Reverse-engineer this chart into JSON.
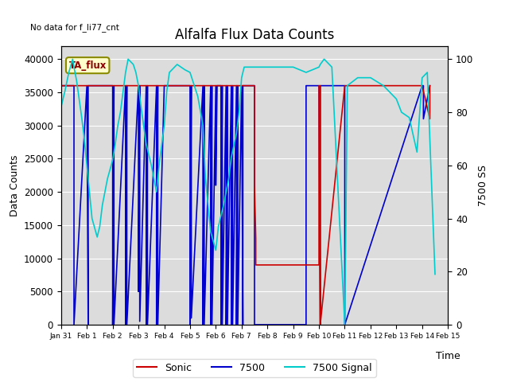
{
  "title": "Alfalfa Flux Data Counts",
  "xlabel": "Time",
  "ylabel_left": "Data Counts",
  "ylabel_right": "7500 SS",
  "top_left_text": "No data for f_li77_cnt",
  "annotation_box": "TA_flux",
  "ylim_left": [
    0,
    42000
  ],
  "ylim_right": [
    0,
    105
  ],
  "background_color": "#dcdcdc",
  "sonic_color": "#cc0000",
  "flux7500_color": "#0000cc",
  "signal7500_color": "#00cccc",
  "xtick_labels": [
    "Jan 31",
    "Feb 1",
    "Feb 2",
    "Feb 3",
    "Feb 4",
    "Feb 5",
    "Feb 6",
    "Feb 7",
    "Feb 8",
    "Feb 9",
    "Feb 10",
    "Feb 11",
    "Feb 12",
    "Feb 13",
    "Feb 14",
    "Feb 15"
  ],
  "sonic_x": [
    0.0,
    7.0,
    7.0,
    7.5,
    7.5,
    7.55,
    7.55,
    10.0,
    10.0,
    10.05,
    10.05,
    11.0,
    11.0,
    14.0,
    14.0,
    14.3,
    14.3
  ],
  "sonic_y": [
    36000,
    36000,
    36000,
    36000,
    21000,
    13000,
    9000,
    9000,
    36000,
    36000,
    0,
    36000,
    36000,
    36000,
    36000,
    31000,
    36000
  ],
  "flux7500_x": [
    0.0,
    0.5,
    0.5,
    1.0,
    1.0,
    1.05,
    1.05,
    2.0,
    2.0,
    2.05,
    2.05,
    2.5,
    2.5,
    2.55,
    2.55,
    3.0,
    3.0,
    3.05,
    3.05,
    3.3,
    3.3,
    3.35,
    3.35,
    3.7,
    3.7,
    3.75,
    3.75,
    4.0,
    4.0,
    4.5,
    4.5,
    5.0,
    5.0,
    5.05,
    5.05,
    5.5,
    5.5,
    5.55,
    5.55,
    5.8,
    5.8,
    5.85,
    5.85,
    6.0,
    6.0,
    6.05,
    6.05,
    6.2,
    6.2,
    6.25,
    6.25,
    6.4,
    6.4,
    6.45,
    6.45,
    6.6,
    6.6,
    6.65,
    6.65,
    6.8,
    6.8,
    6.85,
    6.85,
    7.0,
    7.0,
    7.05,
    7.05,
    7.5,
    7.5,
    9.5,
    9.5,
    10.0,
    10.0,
    10.05,
    10.05,
    11.0,
    11.0,
    14.0,
    14.0,
    14.05,
    14.05,
    14.3,
    14.3
  ],
  "flux7500_y": [
    36000,
    36000,
    0,
    36000,
    36000,
    0,
    36000,
    36000,
    0,
    36000,
    0,
    36000,
    0,
    36000,
    0,
    36000,
    5000,
    36000,
    500,
    36000,
    0,
    36000,
    0,
    36000,
    0,
    36000,
    0,
    36000,
    36000,
    36000,
    36000,
    36000,
    0,
    36000,
    1000,
    36000,
    0,
    36000,
    0,
    36000,
    0,
    36000,
    0,
    36000,
    21000,
    36000,
    36000,
    36000,
    0,
    36000,
    0,
    36000,
    0,
    36000,
    0,
    36000,
    0,
    36000,
    0,
    36000,
    0,
    36000,
    0,
    36000,
    36000,
    0,
    36000,
    36000,
    0,
    0,
    36000,
    36000,
    36000,
    0,
    36000,
    36000,
    0,
    36000,
    36000,
    36000,
    31000,
    36000,
    36000
  ],
  "signal7500_x": [
    0.0,
    0.15,
    0.3,
    0.45,
    0.5,
    0.6,
    0.7,
    0.8,
    0.9,
    1.0,
    1.1,
    1.2,
    1.4,
    1.5,
    1.6,
    1.8,
    2.0,
    2.1,
    2.2,
    2.3,
    2.5,
    2.6,
    2.8,
    2.9,
    3.0,
    3.1,
    3.2,
    3.3,
    3.5,
    3.6,
    3.7,
    3.8,
    4.0,
    4.1,
    4.2,
    4.5,
    4.8,
    5.0,
    5.1,
    5.3,
    5.5,
    5.6,
    5.8,
    6.0,
    6.1,
    6.3,
    6.5,
    6.6,
    6.8,
    6.9,
    7.0,
    7.1,
    7.5,
    8.0,
    8.5,
    9.0,
    9.5,
    10.0,
    10.05,
    10.2,
    10.5,
    11.0,
    11.1,
    11.5,
    12.0,
    12.5,
    13.0,
    13.2,
    13.5,
    13.8,
    14.0,
    14.2,
    14.5
  ],
  "signal7500_y": [
    82,
    88,
    95,
    100,
    97,
    92,
    85,
    78,
    70,
    60,
    50,
    40,
    33,
    37,
    45,
    55,
    62,
    68,
    75,
    80,
    95,
    100,
    98,
    95,
    90,
    82,
    75,
    68,
    60,
    55,
    50,
    60,
    75,
    88,
    95,
    98,
    96,
    95,
    92,
    86,
    75,
    55,
    35,
    28,
    37,
    45,
    55,
    63,
    72,
    80,
    93,
    97,
    97,
    97,
    97,
    97,
    95,
    97,
    98,
    100,
    97,
    0,
    90,
    93,
    93,
    90,
    85,
    80,
    78,
    65,
    93,
    95,
    19
  ]
}
